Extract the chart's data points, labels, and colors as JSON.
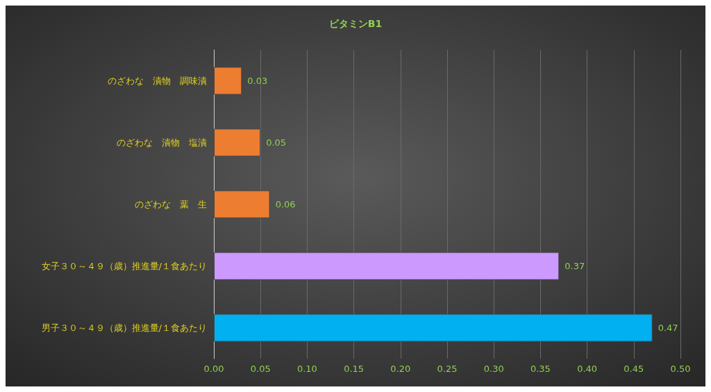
{
  "chart_data": {
    "type": "bar",
    "orientation": "horizontal",
    "title": "ビタミンB1",
    "categories": [
      "のざわな　漬物　調味漬",
      "のざわな　漬物　塩漬",
      "のざわな　葉　生",
      "女子３０～４９（歳）推進量/１食あたり",
      "男子３０～４９（歳）推進量/１食あたり"
    ],
    "values": [
      0.03,
      0.05,
      0.06,
      0.37,
      0.47
    ],
    "colors": [
      "#ed7d31",
      "#ed7d31",
      "#ed7d31",
      "#cc99ff",
      "#00b0f0"
    ],
    "xlim": [
      0,
      0.5
    ],
    "xticks": [
      {
        "value": 0,
        "label": "0.00"
      },
      {
        "value": 0.05,
        "label": "0.05"
      },
      {
        "value": 0.1,
        "label": "0.10"
      },
      {
        "value": 0.15,
        "label": "0.15"
      },
      {
        "value": 0.2,
        "label": "0.20"
      },
      {
        "value": 0.25,
        "label": "0.25"
      },
      {
        "value": 0.3,
        "label": "0.30"
      },
      {
        "value": 0.35,
        "label": "0.35"
      },
      {
        "value": 0.4,
        "label": "0.40"
      },
      {
        "value": 0.45,
        "label": "0.45"
      },
      {
        "value": 0.5,
        "label": "0.50"
      }
    ],
    "grid": "x",
    "data_labels": true
  }
}
